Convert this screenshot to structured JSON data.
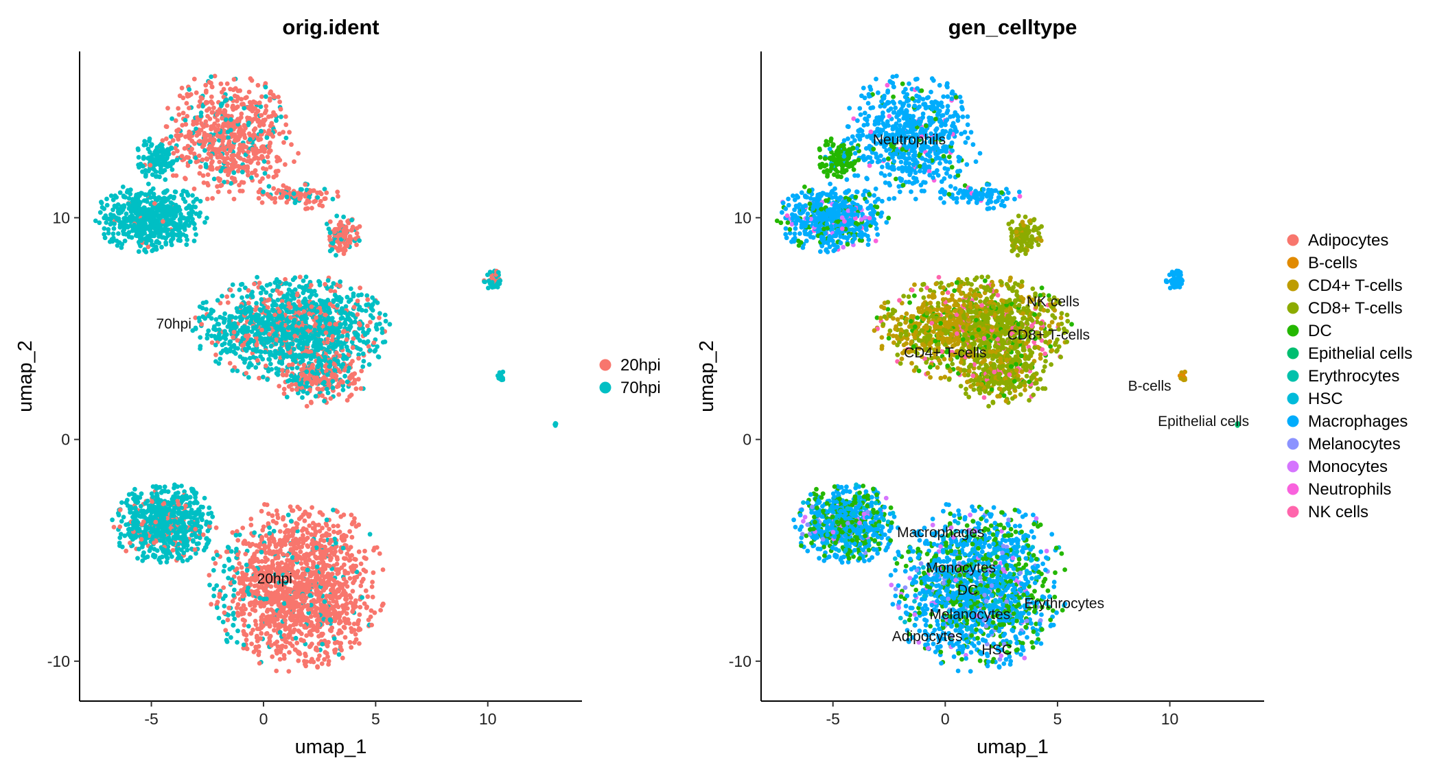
{
  "chart_data": [
    {
      "type": "scatter",
      "title": "orig.ident",
      "xlabel": "umap_1",
      "ylabel": "umap_2",
      "xlim": [
        -8.2,
        14.2
      ],
      "ylim": [
        -11.8,
        17.5
      ],
      "xticks": [
        -5,
        0,
        5,
        10
      ],
      "yticks": [
        -10,
        0,
        10
      ],
      "grid": false,
      "legend_position": "right",
      "series": [
        {
          "name": "20hpi",
          "color": "#F8766D"
        },
        {
          "name": "70hpi",
          "color": "#00BFC4"
        }
      ],
      "cluster_labels": [
        {
          "text": "70hpi",
          "x": -4.0,
          "y": 5.0
        },
        {
          "text": "20hpi",
          "x": 0.5,
          "y": -6.5
        }
      ]
    },
    {
      "type": "scatter",
      "title": "gen_celltype",
      "xlabel": "umap_1",
      "ylabel": "umap_2",
      "xlim": [
        -8.2,
        14.2
      ],
      "ylim": [
        -11.8,
        17.5
      ],
      "xticks": [
        -5,
        0,
        5,
        10
      ],
      "yticks": [
        -10,
        0,
        10
      ],
      "grid": false,
      "legend_position": "right",
      "series": [
        {
          "name": "Adipocytes",
          "color": "#F8766D"
        },
        {
          "name": "B-cells",
          "color": "#E18A00"
        },
        {
          "name": "CD4+ T-cells",
          "color": "#BE9C00"
        },
        {
          "name": "CD8+ T-cells",
          "color": "#8CAB00"
        },
        {
          "name": "DC",
          "color": "#24B700"
        },
        {
          "name": "Epithelial cells",
          "color": "#00BE70"
        },
        {
          "name": "Erythrocytes",
          "color": "#00C1AB"
        },
        {
          "name": "HSC",
          "color": "#00BBDA"
        },
        {
          "name": "Macrophages",
          "color": "#00ACFC"
        },
        {
          "name": "Melanocytes",
          "color": "#8B93FF"
        },
        {
          "name": "Monocytes",
          "color": "#D575FE"
        },
        {
          "name": "Neutrophils",
          "color": "#F962DD"
        },
        {
          "name": "NK cells",
          "color": "#FF65AC"
        }
      ],
      "cluster_labels": [
        {
          "text": "Neutrophils",
          "x": -1.6,
          "y": 13.3
        },
        {
          "text": "NK cells",
          "x": 4.8,
          "y": 6.0
        },
        {
          "text": "CD8+ T-cells",
          "x": 4.6,
          "y": 4.5
        },
        {
          "text": "CD4+ T-cells",
          "x": 0.0,
          "y": 3.7
        },
        {
          "text": "B-cells",
          "x": 9.1,
          "y": 2.2
        },
        {
          "text": "Epithelial cells",
          "x": 11.5,
          "y": 0.6
        },
        {
          "text": "Macrophages",
          "x": -0.2,
          "y": -4.4
        },
        {
          "text": "Monocytes",
          "x": 0.7,
          "y": -6.0
        },
        {
          "text": "DC",
          "x": 1.0,
          "y": -7.0
        },
        {
          "text": "Melanocytes",
          "x": 1.1,
          "y": -8.1
        },
        {
          "text": "Erythrocytes",
          "x": 5.3,
          "y": -7.6
        },
        {
          "text": "Adipocytes",
          "x": -0.8,
          "y": -9.1
        },
        {
          "text": "HSC",
          "x": 2.3,
          "y": -9.7
        }
      ]
    }
  ]
}
